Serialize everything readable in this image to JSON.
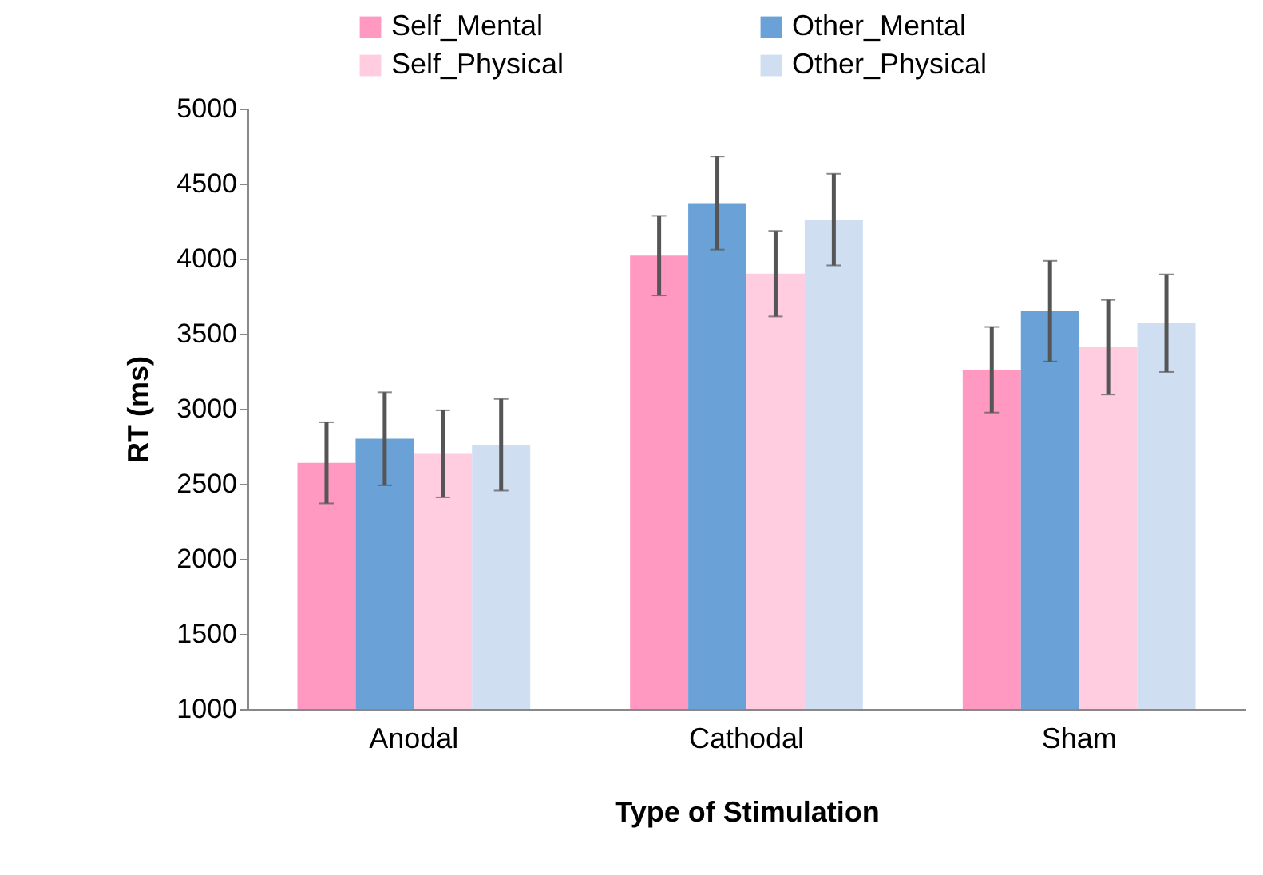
{
  "chart_data": {
    "type": "bar",
    "xlabel": "Type of Stimulation",
    "ylabel": "RT (ms)",
    "categories": [
      "Anodal",
      "Cathodal",
      "Sham"
    ],
    "series": [
      {
        "name": "Self_Mental",
        "color": "#ff99c2",
        "values": [
          2640,
          4020,
          3260
        ],
        "errors": [
          270,
          265,
          285
        ]
      },
      {
        "name": "Other_Mental",
        "color": "#6aa2d8",
        "values": [
          2800,
          4370,
          3650
        ],
        "errors": [
          310,
          310,
          335
        ]
      },
      {
        "name": "Self_Physical",
        "color": "#ffcce0",
        "values": [
          2700,
          3900,
          3410
        ],
        "errors": [
          290,
          285,
          315
        ]
      },
      {
        "name": "Other_Physical",
        "color": "#cfdef1",
        "values": [
          2760,
          4260,
          3570
        ],
        "errors": [
          305,
          305,
          325
        ]
      }
    ],
    "ylim": [
      1000,
      5000
    ],
    "yticks": [
      1000,
      1500,
      2000,
      2500,
      3000,
      3500,
      4000,
      4500,
      5000
    ],
    "grid": false,
    "legend": "top"
  }
}
